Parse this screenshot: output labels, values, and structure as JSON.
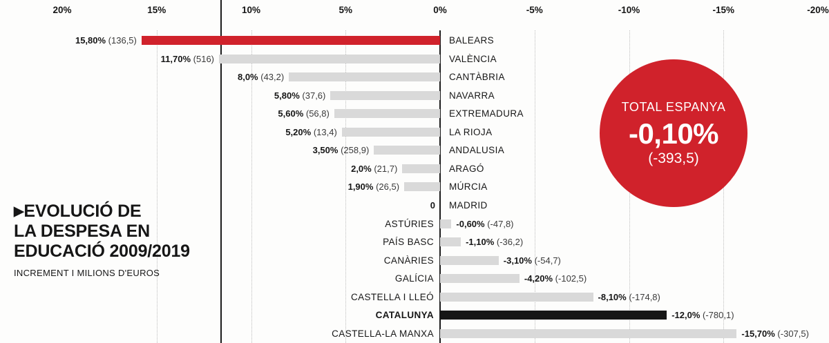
{
  "title": {
    "marker": "▶",
    "lines": [
      "EVOLUCIÓ DE",
      "LA DESPESA EN",
      "EDUCACIÓ 2009/2019"
    ],
    "subtitle": "INCREMENT I MILIONS D'EUROS"
  },
  "total_badge": {
    "label": "TOTAL ESPANYA",
    "value": "-0,10%",
    "detail": "(-393,5)",
    "color": "#d0222b"
  },
  "chart_data": {
    "type": "bar",
    "orientation": "horizontal",
    "title": "Evolució de la despesa en educació 2009/2019",
    "unit": "%",
    "xlim": [
      20,
      -20
    ],
    "axis_ticks": [
      "20%",
      "15%",
      "10%",
      "5%",
      "0%",
      "-5%",
      "-10%",
      "-15%",
      "-20%"
    ],
    "axis_tick_values": [
      20,
      15,
      10,
      5,
      0,
      -5,
      -10,
      -15,
      -20
    ],
    "grid": "dotted-vertical",
    "colors": {
      "highlight": "#d0222b",
      "default": "#d9d9d9",
      "dark": "#161616"
    },
    "rows": [
      {
        "region": "BALEARS",
        "pct": 15.8,
        "pct_label": "15,80%",
        "detail": "(136,5)",
        "color": "highlight",
        "emphasis": false
      },
      {
        "region": "VALÈNCIA",
        "pct": 11.7,
        "pct_label": "11,70%",
        "detail": "(516)",
        "color": "default",
        "emphasis": false
      },
      {
        "region": "CANTÀBRIA",
        "pct": 8.0,
        "pct_label": "8,0%",
        "detail": "(43,2)",
        "color": "default",
        "emphasis": false
      },
      {
        "region": "NAVARRA",
        "pct": 5.8,
        "pct_label": "5,80%",
        "detail": "(37,6)",
        "color": "default",
        "emphasis": false
      },
      {
        "region": "EXTREMADURA",
        "pct": 5.6,
        "pct_label": "5,60%",
        "detail": "(56,8)",
        "color": "default",
        "emphasis": false
      },
      {
        "region": "LA RIOJA",
        "pct": 5.2,
        "pct_label": "5,20%",
        "detail": "(13,4)",
        "color": "default",
        "emphasis": false
      },
      {
        "region": "ANDALUSIA",
        "pct": 3.5,
        "pct_label": "3,50%",
        "detail": "(258,9)",
        "color": "default",
        "emphasis": false
      },
      {
        "region": "ARAGÓ",
        "pct": 2.0,
        "pct_label": "2,0%",
        "detail": "(21,7)",
        "color": "default",
        "emphasis": false
      },
      {
        "region": "MÚRCIA",
        "pct": 1.9,
        "pct_label": "1,90%",
        "detail": "(26,5)",
        "color": "default",
        "emphasis": false
      },
      {
        "region": "MADRID",
        "pct": 0,
        "pct_label": "0",
        "detail": "",
        "color": "default",
        "emphasis": false
      },
      {
        "region": "ASTÚRIES",
        "pct": -0.6,
        "pct_label": "-0,60%",
        "detail": "(-47,8)",
        "color": "default",
        "emphasis": false
      },
      {
        "region": "PAÍS BASC",
        "pct": -1.1,
        "pct_label": "-1,10%",
        "detail": "(-36,2)",
        "color": "default",
        "emphasis": false
      },
      {
        "region": "CANÀRIES",
        "pct": -3.1,
        "pct_label": "-3,10%",
        "detail": "(-54,7)",
        "color": "default",
        "emphasis": false
      },
      {
        "region": "GALÍCIA",
        "pct": -4.2,
        "pct_label": "-4,20%",
        "detail": "(-102,5)",
        "color": "default",
        "emphasis": false
      },
      {
        "region": "CASTELLA I LLEÓ",
        "pct": -8.1,
        "pct_label": "-8,10%",
        "detail": "(-174,8)",
        "color": "default",
        "emphasis": false
      },
      {
        "region": "CATALUNYA",
        "pct": -12.0,
        "pct_label": "-12,0%",
        "detail": "(-780,1)",
        "color": "dark",
        "emphasis": true
      },
      {
        "region": "CASTELLA-LA MANXA",
        "pct": -15.7,
        "pct_label": "-15,70%",
        "detail": "(-307,5)",
        "color": "default",
        "emphasis": false
      }
    ]
  }
}
